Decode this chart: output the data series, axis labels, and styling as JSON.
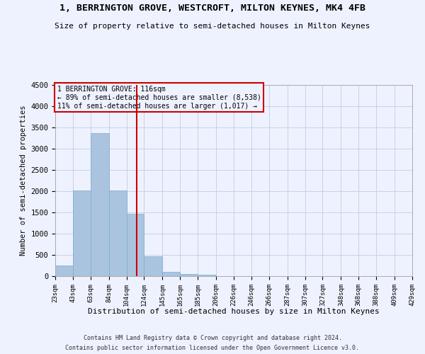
{
  "title": "1, BERRINGTON GROVE, WESTCROFT, MILTON KEYNES, MK4 4FB",
  "subtitle": "Size of property relative to semi-detached houses in Milton Keynes",
  "xlabel": "Distribution of semi-detached houses by size in Milton Keynes",
  "ylabel": "Number of semi-detached properties",
  "footer_line1": "Contains HM Land Registry data © Crown copyright and database right 2024.",
  "footer_line2": "Contains public sector information licensed under the Open Government Licence v3.0.",
  "annotation_line1": "1 BERRINGTON GROVE: 116sqm",
  "annotation_line2": "← 89% of semi-detached houses are smaller (8,538)",
  "annotation_line3": "11% of semi-detached houses are larger (1,017) →",
  "property_size": 116,
  "bin_edges": [
    23,
    43,
    63,
    84,
    104,
    124,
    145,
    165,
    185,
    206,
    226,
    246,
    266,
    287,
    307,
    327,
    348,
    368,
    388,
    409,
    429
  ],
  "bin_labels": [
    "23sqm",
    "43sqm",
    "63sqm",
    "84sqm",
    "104sqm",
    "124sqm",
    "145sqm",
    "165sqm",
    "185sqm",
    "206sqm",
    "226sqm",
    "246sqm",
    "266sqm",
    "287sqm",
    "307sqm",
    "327sqm",
    "348sqm",
    "368sqm",
    "388sqm",
    "409sqm",
    "429sqm"
  ],
  "counts": [
    250,
    2020,
    3370,
    2010,
    1460,
    475,
    100,
    55,
    40,
    0,
    0,
    0,
    0,
    0,
    0,
    0,
    0,
    0,
    0,
    0
  ],
  "bar_color": "#aac4e0",
  "bar_edge_color": "#7aaacf",
  "vline_color": "#cc0000",
  "vline_x": 116,
  "annotation_box_color": "#cc0000",
  "background_color": "#eef2ff",
  "grid_color": "#c8d0e8",
  "ylim": [
    0,
    4500
  ]
}
